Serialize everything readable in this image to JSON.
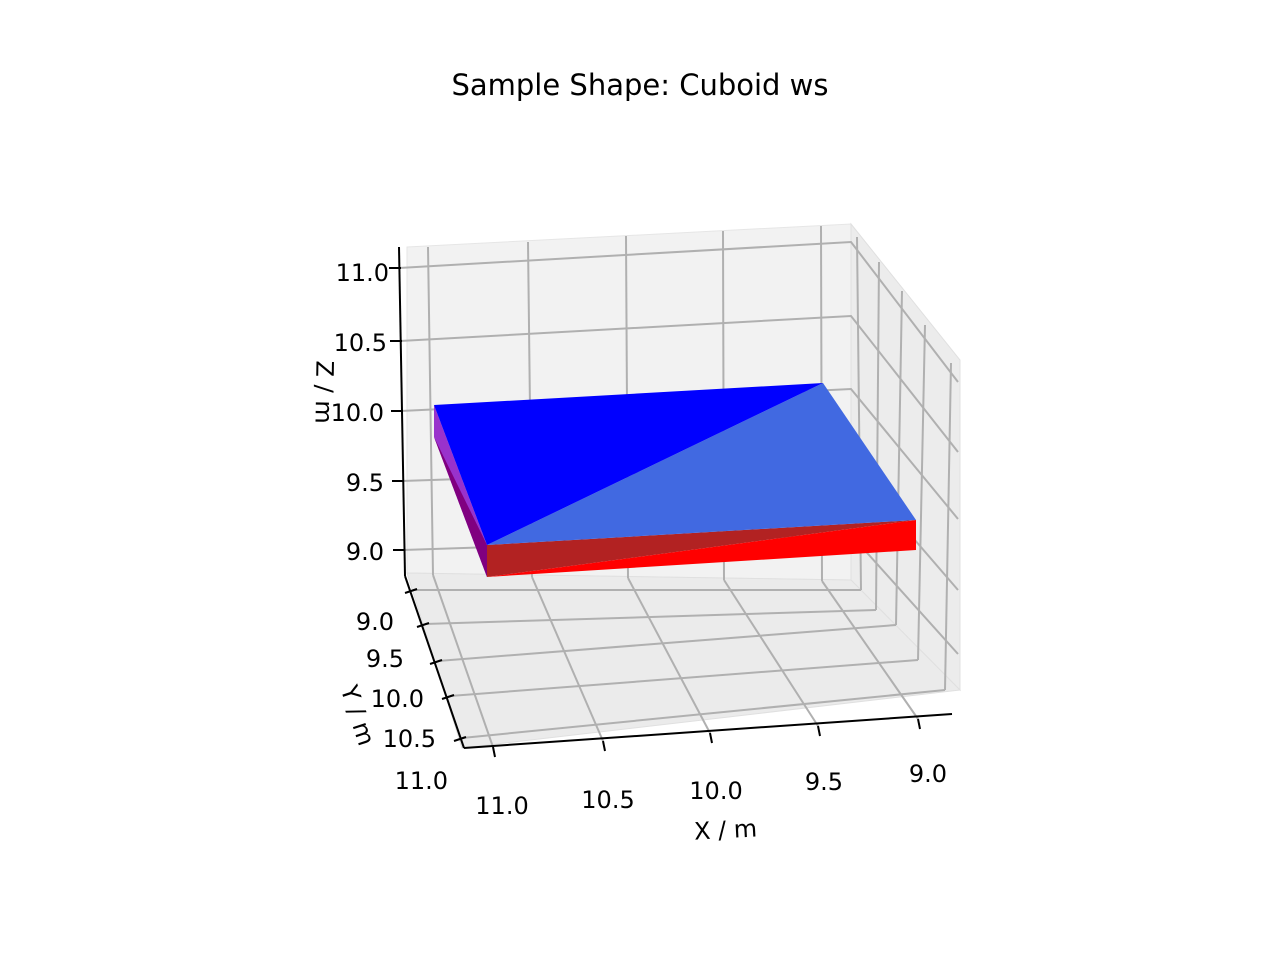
{
  "chart_data": {
    "type": "3d-surface",
    "title": "Sample Shape: Cuboid ws",
    "xlabel": "X / m",
    "ylabel": "Y / m",
    "zlabel": "Z / m",
    "xlim": [
      8.85,
      11.15
    ],
    "ylim": [
      8.85,
      11.15
    ],
    "zlim": [
      8.85,
      11.15
    ],
    "xticks": [
      "9.0",
      "9.5",
      "10.0",
      "10.5",
      "11.0"
    ],
    "yticks": [
      "9.0",
      "9.5",
      "10.0",
      "10.5",
      "11.0"
    ],
    "zticks": [
      "9.0",
      "9.5",
      "10.0",
      "10.5",
      "11.0"
    ],
    "grid": true,
    "cuboid": {
      "x": [
        9.0,
        11.0
      ],
      "y": [
        9.0,
        11.0
      ],
      "z": [
        9.9,
        10.0
      ],
      "face_colors": {
        "top_triangle_1": "#0000ff",
        "top_triangle_2": "#4169e1",
        "front_triangle_1": "#b22222",
        "front_triangle_2": "#ff0000",
        "side_triangle_1": "#9932cc",
        "side_triangle_2": "#800080"
      }
    }
  }
}
